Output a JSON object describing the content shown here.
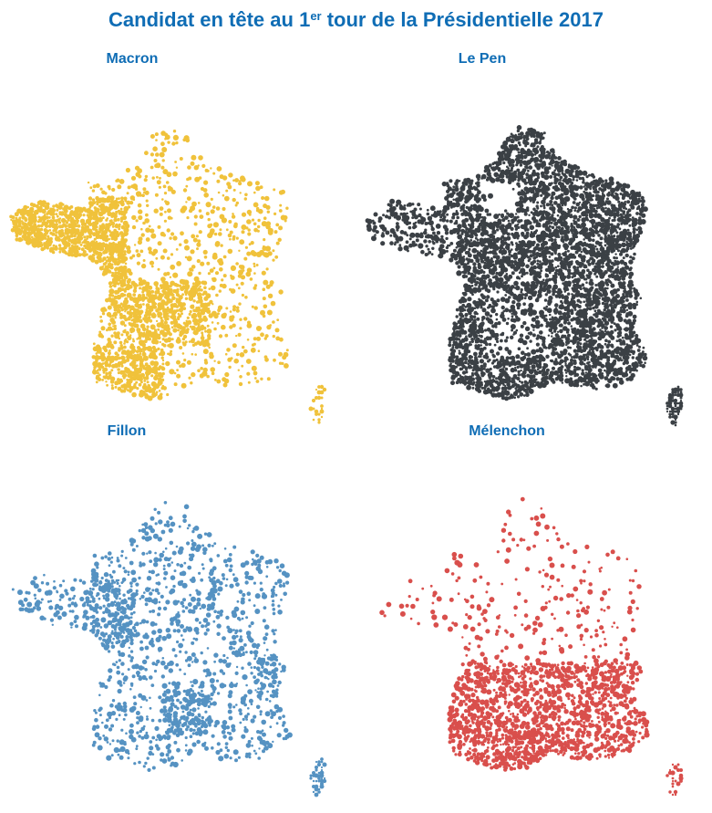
{
  "title": {
    "pre": "Candidat en tête au 1",
    "sup": "er",
    "post": " tour de la Présidentielle 2017"
  },
  "maps": [
    {
      "candidate": "Macron",
      "color": "#f0c23b",
      "density": "high-west-southwest"
    },
    {
      "candidate": "Le Pen",
      "color": "#3b4045",
      "density": "very-high-north-east-south"
    },
    {
      "candidate": "Fillon",
      "color": "#5592c2",
      "density": "medium-scattered"
    },
    {
      "candidate": "Mélenchon",
      "color": "#d94f4c",
      "density": "medium-south"
    }
  ]
}
